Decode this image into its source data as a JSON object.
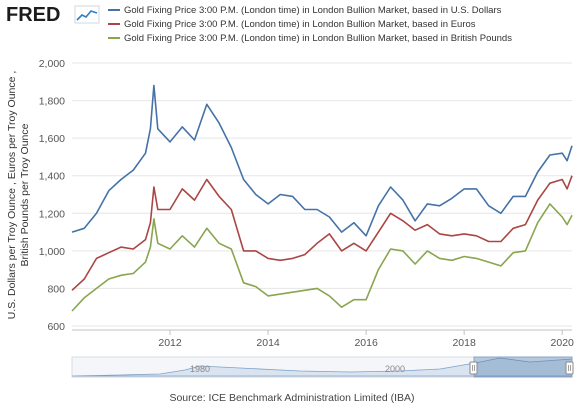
{
  "brand": {
    "logo_text": "FRED"
  },
  "source": "Source: ICE Benchmark Administration Limited (IBA)",
  "navigator": {
    "tick_labels": [
      "1980",
      "2000"
    ]
  },
  "chart_data": {
    "type": "line",
    "ylabel_lines": [
      "U.S. Dollars per Troy Ounce , Euros per Troy Ounce ,",
      "British Pounds per Troy Ounce"
    ],
    "ylim": [
      600,
      2000
    ],
    "yticks": [
      600,
      800,
      1000,
      1200,
      1400,
      1600,
      1800,
      2000
    ],
    "ytick_labels": [
      "600",
      "800",
      "1,000",
      "1,200",
      "1,400",
      "1,600",
      "1,800",
      "2,000"
    ],
    "xlim": [
      2010.0,
      2020.2
    ],
    "xticks": [
      2012,
      2014,
      2016,
      2018,
      2020
    ],
    "xtick_labels": [
      "2012",
      "2014",
      "2016",
      "2018",
      "2020"
    ],
    "grid": "horizontal",
    "legend_position": "top",
    "x": [
      2010.0,
      2010.25,
      2010.5,
      2010.75,
      2011.0,
      2011.25,
      2011.5,
      2011.6,
      2011.67,
      2011.75,
      2012.0,
      2012.25,
      2012.5,
      2012.75,
      2013.0,
      2013.25,
      2013.5,
      2013.75,
      2014.0,
      2014.25,
      2014.5,
      2014.75,
      2015.0,
      2015.25,
      2015.5,
      2015.75,
      2016.0,
      2016.25,
      2016.5,
      2016.75,
      2017.0,
      2017.25,
      2017.5,
      2017.75,
      2018.0,
      2018.25,
      2018.5,
      2018.75,
      2019.0,
      2019.25,
      2019.5,
      2019.75,
      2020.0,
      2020.1,
      2020.2
    ],
    "series": [
      {
        "name": "Gold Fixing Price 3:00 P.M. (London time) in London Bullion Market, based in U.S. Dollars",
        "color": "#4572a7",
        "values": [
          1100,
          1120,
          1200,
          1320,
          1380,
          1430,
          1520,
          1650,
          1880,
          1650,
          1580,
          1660,
          1590,
          1780,
          1680,
          1550,
          1380,
          1300,
          1250,
          1300,
          1290,
          1220,
          1220,
          1180,
          1100,
          1150,
          1080,
          1240,
          1340,
          1270,
          1160,
          1250,
          1240,
          1280,
          1330,
          1330,
          1240,
          1200,
          1290,
          1290,
          1420,
          1510,
          1520,
          1480,
          1560
        ]
      },
      {
        "name": "Gold Fixing Price 3:00 P.M. (London time) in London Bullion Market, based in Euros",
        "color": "#aa4643",
        "values": [
          790,
          850,
          960,
          990,
          1020,
          1010,
          1060,
          1150,
          1340,
          1220,
          1220,
          1330,
          1270,
          1380,
          1290,
          1220,
          1000,
          1000,
          960,
          950,
          960,
          980,
          1040,
          1090,
          1000,
          1040,
          1000,
          1100,
          1200,
          1160,
          1110,
          1140,
          1090,
          1080,
          1090,
          1080,
          1050,
          1050,
          1120,
          1140,
          1270,
          1360,
          1380,
          1330,
          1400
        ]
      },
      {
        "name": "Gold Fixing Price 3:00 P.M. (London time) in London Bullion Market, based in British Pounds",
        "color": "#89a54e",
        "values": [
          680,
          750,
          800,
          850,
          870,
          880,
          940,
          1020,
          1170,
          1040,
          1010,
          1080,
          1020,
          1120,
          1040,
          1010,
          830,
          810,
          760,
          770,
          780,
          790,
          800,
          760,
          700,
          740,
          740,
          900,
          1010,
          1000,
          930,
          1000,
          960,
          950,
          970,
          960,
          940,
          920,
          990,
          1000,
          1150,
          1250,
          1180,
          1140,
          1190
        ]
      }
    ]
  }
}
